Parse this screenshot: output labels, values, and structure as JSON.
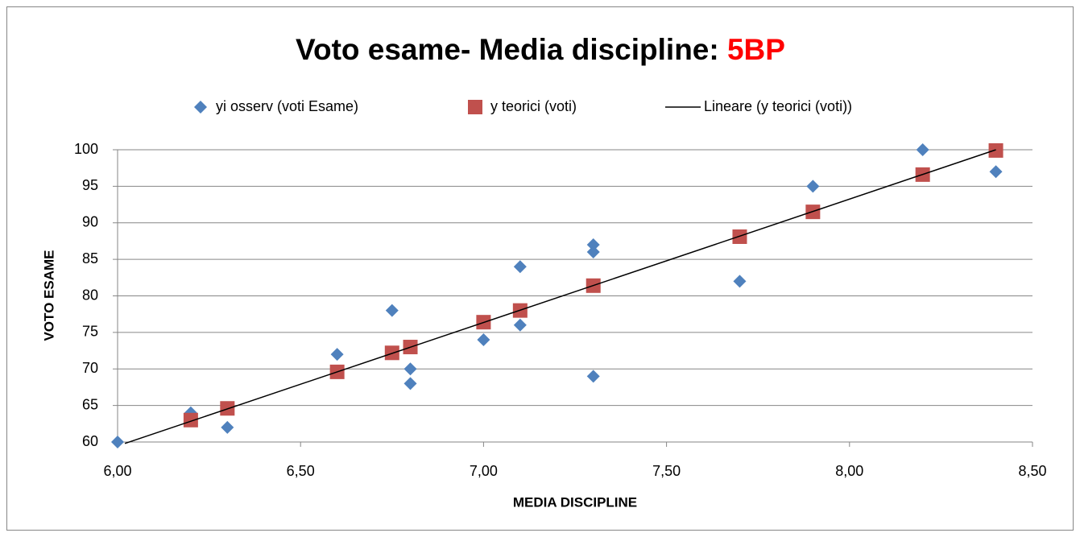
{
  "chart_data": {
    "type": "scatter",
    "title": "Voto esame- Media discipline: ",
    "title_highlight": "5BP",
    "title_highlight_color": "#ff0000",
    "x_label": "MEDIA DISCIPLINE",
    "y_label": "VOTO ESAME",
    "legend": "top",
    "grid": true,
    "xlim": [
      6,
      8.5
    ],
    "ylim": [
      60,
      100
    ],
    "xticks": [
      {
        "value": 6,
        "label": "6,00"
      },
      {
        "value": 6.5,
        "label": "6,50"
      },
      {
        "value": 7,
        "label": "7,00"
      },
      {
        "value": 7.5,
        "label": "7,50"
      },
      {
        "value": 8,
        "label": "8,00"
      },
      {
        "value": 8.5,
        "label": "8,50"
      }
    ],
    "yticks": [
      60,
      65,
      70,
      75,
      80,
      85,
      90,
      95,
      100
    ],
    "series": [
      {
        "name": "yi osserv (voti Esame)",
        "color": "#4f81bd",
        "marker": "diamond",
        "x": [
          6.0,
          6.2,
          6.3,
          6.6,
          6.75,
          6.8,
          6.8,
          7.0,
          7.1,
          7.1,
          7.3,
          7.3,
          7.3,
          7.7,
          7.9,
          8.2,
          8.4
        ],
        "values": [
          60,
          64,
          62,
          72,
          78,
          70,
          68,
          74,
          84,
          76,
          87,
          86,
          69,
          82,
          95,
          100,
          97
        ]
      },
      {
        "name": "y teorici (voti)",
        "color": "#c0504d",
        "marker": "square",
        "x": [
          6.2,
          6.3,
          6.6,
          6.75,
          6.8,
          7.0,
          7.1,
          7.3,
          7.7,
          7.9,
          8.2,
          8.4
        ],
        "values": [
          63,
          64.6,
          69.6,
          72.2,
          73,
          76.4,
          78,
          81.4,
          88.1,
          91.5,
          96.6,
          99.9
        ]
      },
      {
        "name": "Lineare (y teorici (voti))",
        "color": "#000000",
        "marker": "line",
        "x": [
          6.02,
          8.4
        ],
        "values": [
          59.8,
          100
        ]
      }
    ]
  }
}
